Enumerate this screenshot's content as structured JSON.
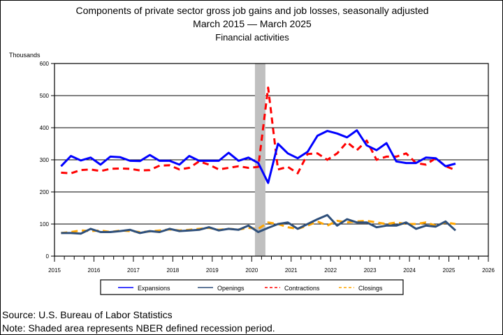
{
  "chart_data": {
    "type": "line",
    "title": "Components of private sector gross job gains and job losses, seasonally adjusted",
    "subtitle": "March 2015 — March 2025",
    "subtitle2": "Financial activities",
    "ylabel": "Thousands",
    "ylim": [
      0,
      600
    ],
    "yticks": [
      "0",
      "100",
      "200",
      "300",
      "400",
      "500",
      "600"
    ],
    "xlim": [
      2015,
      2026
    ],
    "xticks": [
      "2015",
      "2016",
      "2017",
      "2018",
      "2019",
      "2020",
      "2021",
      "2022",
      "2023",
      "2024",
      "2025",
      "2026"
    ],
    "x_start": "March 2015",
    "x_frequency": "quarterly",
    "grid": true,
    "legend_position": "bottom",
    "recession_shading": {
      "start": 2020.1,
      "end": 2020.33,
      "color": "#c0c0c0"
    },
    "series": [
      {
        "name": "Expansions",
        "color": "#0000ff",
        "style": "solid",
        "values": [
          280,
          312,
          298,
          307,
          285,
          310,
          308,
          297,
          296,
          315,
          297,
          297,
          285,
          312,
          297,
          297,
          297,
          322,
          297,
          307,
          290,
          228,
          350,
          320,
          305,
          325,
          375,
          390,
          382,
          370,
          392,
          345,
          330,
          352,
          295,
          290,
          290,
          307,
          305,
          280,
          288
        ]
      },
      {
        "name": "Openings",
        "color": "#2e4f7a",
        "style": "solid",
        "values": [
          72,
          72,
          70,
          85,
          75,
          75,
          78,
          82,
          72,
          78,
          75,
          85,
          78,
          80,
          82,
          90,
          80,
          85,
          82,
          95,
          75,
          88,
          100,
          105,
          85,
          100,
          115,
          128,
          95,
          115,
          105,
          105,
          90,
          95,
          95,
          105,
          85,
          95,
          92,
          108,
          80
        ]
      },
      {
        "name": "Contractions",
        "color": "#ff0000",
        "style": "dashed",
        "values": [
          260,
          258,
          268,
          270,
          265,
          272,
          273,
          272,
          267,
          268,
          282,
          283,
          270,
          275,
          295,
          285,
          270,
          275,
          280,
          275,
          278,
          525,
          270,
          278,
          258,
          318,
          320,
          300,
          320,
          355,
          330,
          360,
          300,
          310,
          310,
          320,
          290,
          285,
          305,
          280,
          268
        ]
      },
      {
        "name": "Closings",
        "color": "#ffa500",
        "style": "dashed",
        "values": [
          72,
          75,
          80,
          78,
          80,
          75,
          80,
          78,
          75,
          77,
          80,
          83,
          80,
          82,
          85,
          88,
          82,
          85,
          83,
          88,
          85,
          105,
          100,
          90,
          85,
          95,
          108,
          95,
          110,
          105,
          108,
          110,
          105,
          100,
          105,
          100,
          100,
          105,
          95,
          105,
          100
        ]
      }
    ]
  },
  "footer": {
    "source": "Source: U.S. Bureau of Labor Statistics",
    "note": "Note: Shaded area represents NBER defined recession period."
  }
}
